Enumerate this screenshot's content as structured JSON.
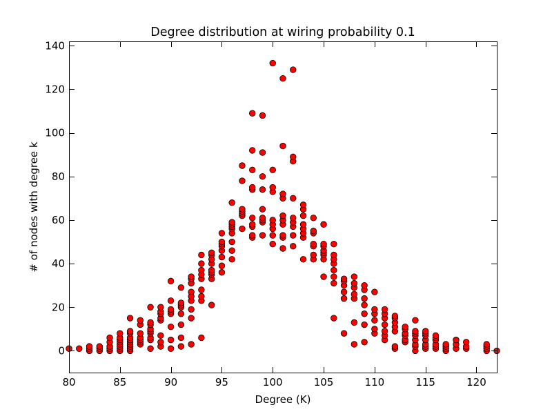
{
  "chart_data": {
    "type": "scatter",
    "title": "Degree distribution at wiring probability 0.1",
    "xlabel": "Degree (K)",
    "ylabel": "# of nodes with degree k",
    "xlim": [
      80,
      122
    ],
    "ylim": [
      -10,
      142
    ],
    "xticks": [
      "80",
      "85",
      "90",
      "95",
      "100",
      "105",
      "110",
      "115",
      "120"
    ],
    "yticks": [
      "0",
      "20",
      "40",
      "60",
      "80",
      "100",
      "120",
      "140"
    ],
    "grid": false,
    "marker_color": "#ff0000",
    "edge_color": "#000000",
    "points": [
      [
        80,
        1
      ],
      [
        81,
        1
      ],
      [
        82,
        0
      ],
      [
        82,
        1
      ],
      [
        82,
        2
      ],
      [
        83,
        0
      ],
      [
        83,
        1
      ],
      [
        83,
        2
      ],
      [
        84,
        0
      ],
      [
        84,
        1
      ],
      [
        84,
        2
      ],
      [
        84,
        4
      ],
      [
        84,
        6
      ],
      [
        85,
        0
      ],
      [
        85,
        1
      ],
      [
        85,
        2
      ],
      [
        85,
        3
      ],
      [
        85,
        4
      ],
      [
        85,
        5
      ],
      [
        85,
        6
      ],
      [
        85,
        8
      ],
      [
        86,
        0
      ],
      [
        86,
        1
      ],
      [
        86,
        2
      ],
      [
        86,
        3
      ],
      [
        86,
        4
      ],
      [
        86,
        5
      ],
      [
        86,
        6
      ],
      [
        86,
        8
      ],
      [
        86,
        9
      ],
      [
        86,
        15
      ],
      [
        87,
        3
      ],
      [
        87,
        4
      ],
      [
        87,
        5
      ],
      [
        87,
        6
      ],
      [
        87,
        8
      ],
      [
        87,
        12
      ],
      [
        87,
        14
      ],
      [
        88,
        1
      ],
      [
        88,
        5
      ],
      [
        88,
        6
      ],
      [
        88,
        8
      ],
      [
        88,
        9
      ],
      [
        88,
        10
      ],
      [
        88,
        12
      ],
      [
        88,
        13
      ],
      [
        88,
        20
      ],
      [
        89,
        2
      ],
      [
        89,
        4
      ],
      [
        89,
        7
      ],
      [
        89,
        14
      ],
      [
        89,
        15
      ],
      [
        89,
        17
      ],
      [
        89,
        18
      ],
      [
        89,
        20
      ],
      [
        90,
        1
      ],
      [
        90,
        5
      ],
      [
        90,
        11
      ],
      [
        90,
        17
      ],
      [
        90,
        18
      ],
      [
        90,
        19
      ],
      [
        90,
        23
      ],
      [
        90,
        32
      ],
      [
        91,
        2
      ],
      [
        91,
        6
      ],
      [
        91,
        12
      ],
      [
        91,
        17
      ],
      [
        91,
        20
      ],
      [
        91,
        21
      ],
      [
        91,
        22
      ],
      [
        91,
        29
      ],
      [
        92,
        3
      ],
      [
        92,
        15
      ],
      [
        92,
        19
      ],
      [
        92,
        23
      ],
      [
        92,
        25
      ],
      [
        92,
        27
      ],
      [
        92,
        31
      ],
      [
        92,
        33
      ],
      [
        92,
        34
      ],
      [
        93,
        6
      ],
      [
        93,
        23
      ],
      [
        93,
        25
      ],
      [
        93,
        28
      ],
      [
        93,
        33
      ],
      [
        93,
        35
      ],
      [
        93,
        37
      ],
      [
        93,
        40
      ],
      [
        93,
        44
      ],
      [
        94,
        21
      ],
      [
        94,
        33
      ],
      [
        94,
        35
      ],
      [
        94,
        36
      ],
      [
        94,
        37
      ],
      [
        94,
        40
      ],
      [
        94,
        42
      ],
      [
        94,
        44
      ],
      [
        94,
        45
      ],
      [
        95,
        36
      ],
      [
        95,
        39
      ],
      [
        95,
        43
      ],
      [
        95,
        46
      ],
      [
        95,
        48
      ],
      [
        95,
        49
      ],
      [
        95,
        50
      ],
      [
        95,
        54
      ],
      [
        96,
        42
      ],
      [
        96,
        46
      ],
      [
        96,
        50
      ],
      [
        96,
        54
      ],
      [
        96,
        56
      ],
      [
        96,
        57
      ],
      [
        96,
        58
      ],
      [
        96,
        59
      ],
      [
        96,
        68
      ],
      [
        97,
        56
      ],
      [
        97,
        62
      ],
      [
        97,
        63
      ],
      [
        97,
        64
      ],
      [
        97,
        65
      ],
      [
        97,
        78
      ],
      [
        97,
        85
      ],
      [
        98,
        52
      ],
      [
        98,
        53
      ],
      [
        98,
        57
      ],
      [
        98,
        58
      ],
      [
        98,
        61
      ],
      [
        98,
        74
      ],
      [
        98,
        75
      ],
      [
        98,
        83
      ],
      [
        98,
        92
      ],
      [
        98,
        109
      ],
      [
        99,
        53
      ],
      [
        99,
        59
      ],
      [
        99,
        60
      ],
      [
        99,
        61
      ],
      [
        99,
        65
      ],
      [
        99,
        74
      ],
      [
        99,
        80
      ],
      [
        99,
        91
      ],
      [
        99,
        108
      ],
      [
        100,
        49
      ],
      [
        100,
        53
      ],
      [
        100,
        56
      ],
      [
        100,
        58
      ],
      [
        100,
        60
      ],
      [
        100,
        73
      ],
      [
        100,
        75
      ],
      [
        100,
        83
      ],
      [
        100,
        132
      ],
      [
        101,
        47
      ],
      [
        101,
        52
      ],
      [
        101,
        53
      ],
      [
        101,
        58
      ],
      [
        101,
        60
      ],
      [
        101,
        62
      ],
      [
        101,
        70
      ],
      [
        101,
        72
      ],
      [
        101,
        94
      ],
      [
        101,
        125
      ],
      [
        102,
        48
      ],
      [
        102,
        53
      ],
      [
        102,
        57
      ],
      [
        102,
        59
      ],
      [
        102,
        61
      ],
      [
        102,
        70
      ],
      [
        102,
        87
      ],
      [
        102,
        89
      ],
      [
        102,
        129
      ],
      [
        103,
        42
      ],
      [
        103,
        52
      ],
      [
        103,
        54
      ],
      [
        103,
        56
      ],
      [
        103,
        58
      ],
      [
        103,
        62
      ],
      [
        103,
        65
      ],
      [
        103,
        67
      ],
      [
        104,
        42
      ],
      [
        104,
        44
      ],
      [
        104,
        48
      ],
      [
        104,
        49
      ],
      [
        104,
        54
      ],
      [
        104,
        55
      ],
      [
        104,
        61
      ],
      [
        105,
        34
      ],
      [
        105,
        42
      ],
      [
        105,
        44
      ],
      [
        105,
        45
      ],
      [
        105,
        46
      ],
      [
        105,
        48
      ],
      [
        105,
        49
      ],
      [
        105,
        58
      ],
      [
        106,
        15
      ],
      [
        106,
        31
      ],
      [
        106,
        34
      ],
      [
        106,
        37
      ],
      [
        106,
        40
      ],
      [
        106,
        42
      ],
      [
        106,
        44
      ],
      [
        106,
        49
      ],
      [
        107,
        8
      ],
      [
        107,
        24
      ],
      [
        107,
        27
      ],
      [
        107,
        30
      ],
      [
        107,
        32
      ],
      [
        107,
        33
      ],
      [
        108,
        3
      ],
      [
        108,
        13
      ],
      [
        108,
        24
      ],
      [
        108,
        26
      ],
      [
        108,
        29
      ],
      [
        108,
        31
      ],
      [
        108,
        34
      ],
      [
        109,
        4
      ],
      [
        109,
        12
      ],
      [
        109,
        17
      ],
      [
        109,
        21
      ],
      [
        109,
        24
      ],
      [
        109,
        28
      ],
      [
        109,
        30
      ],
      [
        110,
        8
      ],
      [
        110,
        10
      ],
      [
        110,
        14
      ],
      [
        110,
        17
      ],
      [
        110,
        19
      ],
      [
        110,
        27
      ],
      [
        111,
        5
      ],
      [
        111,
        7
      ],
      [
        111,
        9
      ],
      [
        111,
        12
      ],
      [
        111,
        15
      ],
      [
        111,
        17
      ],
      [
        111,
        19
      ],
      [
        112,
        1
      ],
      [
        112,
        2
      ],
      [
        112,
        9
      ],
      [
        112,
        11
      ],
      [
        112,
        13
      ],
      [
        112,
        15
      ],
      [
        112,
        16
      ],
      [
        113,
        4
      ],
      [
        113,
        5
      ],
      [
        113,
        7
      ],
      [
        113,
        8
      ],
      [
        113,
        10
      ],
      [
        113,
        11
      ],
      [
        114,
        0
      ],
      [
        114,
        2
      ],
      [
        114,
        3
      ],
      [
        114,
        5
      ],
      [
        114,
        7
      ],
      [
        114,
        8
      ],
      [
        114,
        9
      ],
      [
        114,
        14
      ],
      [
        115,
        1
      ],
      [
        115,
        2
      ],
      [
        115,
        3
      ],
      [
        115,
        5
      ],
      [
        115,
        7
      ],
      [
        115,
        8
      ],
      [
        115,
        9
      ],
      [
        116,
        1
      ],
      [
        116,
        2
      ],
      [
        116,
        3
      ],
      [
        116,
        5
      ],
      [
        116,
        6
      ],
      [
        116,
        7
      ],
      [
        117,
        0
      ],
      [
        117,
        1
      ],
      [
        117,
        2
      ],
      [
        117,
        3
      ],
      [
        118,
        1
      ],
      [
        118,
        3
      ],
      [
        118,
        5
      ],
      [
        119,
        1
      ],
      [
        119,
        2
      ],
      [
        119,
        4
      ],
      [
        121,
        0
      ],
      [
        121,
        1
      ],
      [
        121,
        2
      ],
      [
        121,
        3
      ],
      [
        122,
        0
      ]
    ]
  }
}
